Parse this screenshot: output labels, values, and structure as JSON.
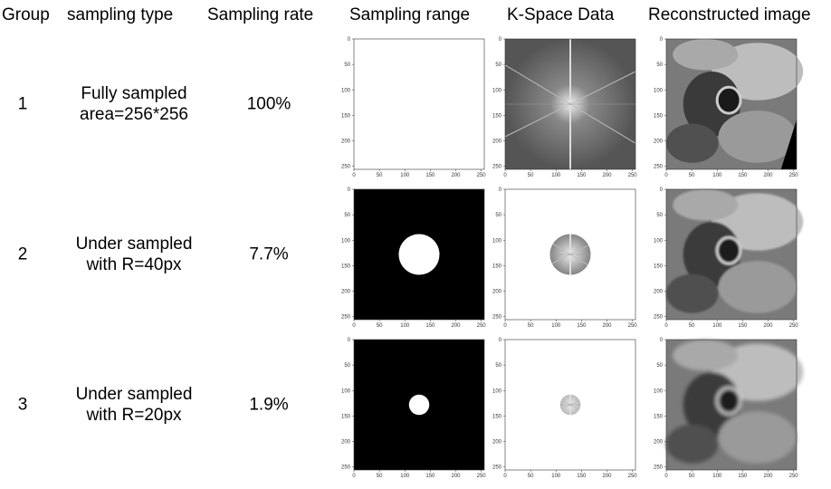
{
  "headers": [
    "Group",
    "sampling type",
    "Sampling rate",
    "Sampling range",
    "K-Space Data",
    "Reconstructed image"
  ],
  "rows": [
    {
      "group": "1",
      "type_line1": "Fully sampled",
      "type_line2": "area=256*256",
      "rate": "100%",
      "radius_px": null
    },
    {
      "group": "2",
      "type_line1": "Under sampled",
      "type_line2": "with R=40px",
      "rate": "7.7%",
      "radius_px": 40
    },
    {
      "group": "3",
      "type_line1": "Under sampled",
      "type_line2": "with R=20px",
      "rate": "1.9%",
      "radius_px": 20
    }
  ],
  "ticks": [
    "0",
    "50",
    "100",
    "150",
    "200",
    "250"
  ]
}
